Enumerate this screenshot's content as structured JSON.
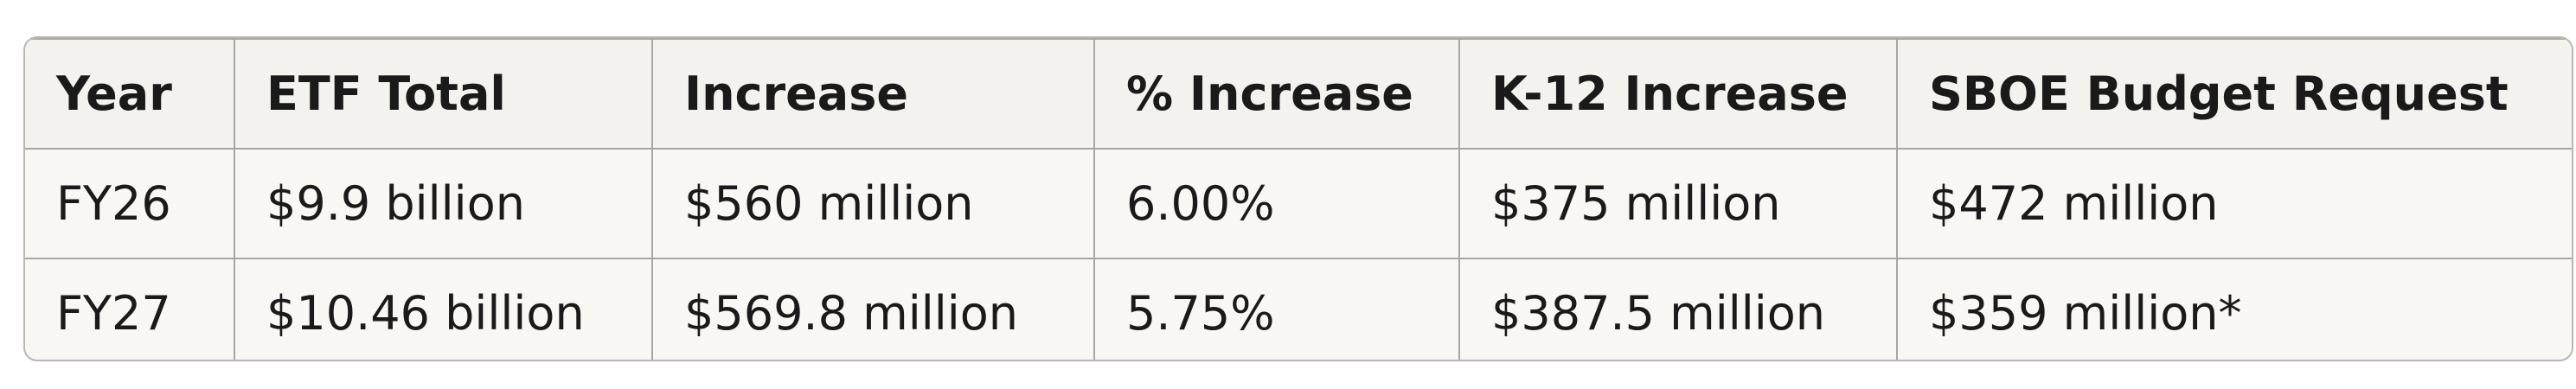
{
  "table": {
    "headers": [
      "Year",
      "ETF Total",
      "Increase",
      "% Increase",
      "K-12 Increase",
      "SBOE Budget Request"
    ],
    "rows": [
      [
        "FY26",
        "$9.9 billion",
        "$560 million",
        "6.00%",
        "$375 million",
        "$472 million"
      ],
      [
        "FY27",
        "$10.46 billion",
        "$569.8 million",
        "5.75%",
        "$387.5 million",
        "$359 million*"
      ]
    ]
  }
}
